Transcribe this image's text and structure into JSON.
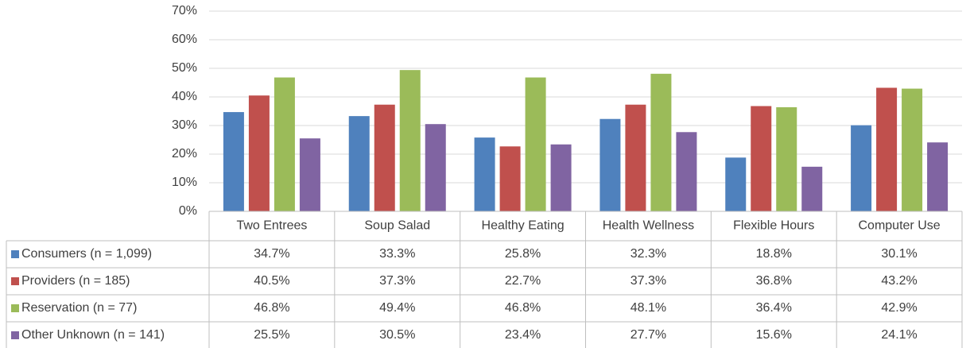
{
  "chart_data": {
    "type": "bar",
    "categories": [
      "Two Entrees",
      "Soup Salad",
      "Healthy Eating",
      "Health Wellness",
      "Flexible Hours",
      "Computer Use"
    ],
    "series": [
      {
        "name": "Consumers (n = 1,099)",
        "color": "#4f81bd",
        "values": [
          34.7,
          33.3,
          25.8,
          32.3,
          18.8,
          30.1
        ],
        "value_labels": [
          "34.7%",
          "33.3%",
          "25.8%",
          "32.3%",
          "18.8%",
          "30.1%"
        ]
      },
      {
        "name": "Providers (n = 185)",
        "color": "#c0504d",
        "values": [
          40.5,
          37.3,
          22.7,
          37.3,
          36.8,
          43.2
        ],
        "value_labels": [
          "40.5%",
          "37.3%",
          "22.7%",
          "37.3%",
          "36.8%",
          "43.2%"
        ]
      },
      {
        "name": "Reservation (n = 77)",
        "color": "#9bbb59",
        "values": [
          46.8,
          49.4,
          46.8,
          48.1,
          36.4,
          42.9
        ],
        "value_labels": [
          "46.8%",
          "49.4%",
          "46.8%",
          "48.1%",
          "36.4%",
          "42.9%"
        ]
      },
      {
        "name": "Other Unknown (n = 141)",
        "color": "#8064a2",
        "values": [
          25.5,
          30.5,
          23.4,
          27.7,
          15.6,
          24.1
        ],
        "value_labels": [
          "25.5%",
          "30.5%",
          "23.4%",
          "27.7%",
          "15.6%",
          "24.1%"
        ]
      }
    ],
    "ylim": [
      0,
      70
    ],
    "yticks": [
      {
        "value": 0,
        "label": "0%"
      },
      {
        "value": 10,
        "label": "10%"
      },
      {
        "value": 20,
        "label": "20%"
      },
      {
        "value": 30,
        "label": "30%"
      },
      {
        "value": 40,
        "label": "40%"
      },
      {
        "value": 50,
        "label": "50%"
      },
      {
        "value": 60,
        "label": "60%"
      },
      {
        "value": 70,
        "label": "70%"
      }
    ],
    "grid": true
  }
}
